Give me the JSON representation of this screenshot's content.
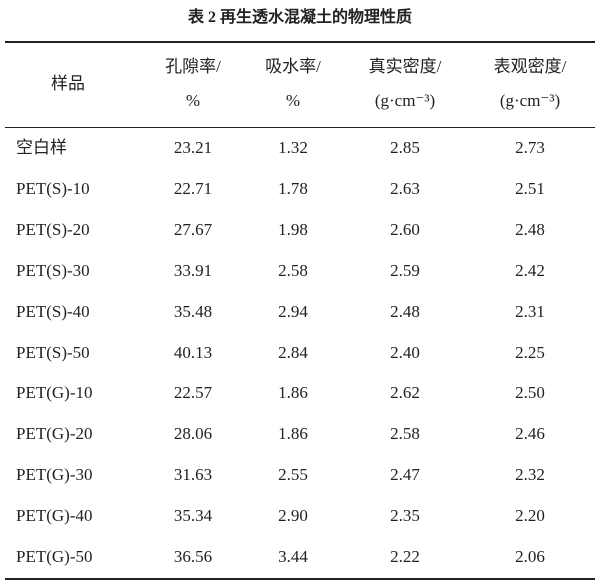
{
  "title": "表 2  再生透水混凝土的物理性质",
  "table": {
    "header": [
      [
        "样品"
      ],
      [
        "孔隙率/",
        "%"
      ],
      [
        "吸水率/",
        "%"
      ],
      [
        "真实密度/",
        "(g·cm⁻³)"
      ],
      [
        "表观密度/",
        "(g·cm⁻³)"
      ]
    ],
    "rows": [
      [
        "空白样",
        "23.21",
        "1.32",
        "2.85",
        "2.73"
      ],
      [
        "PET(S)-10",
        "22.71",
        "1.78",
        "2.63",
        "2.51"
      ],
      [
        "PET(S)-20",
        "27.67",
        "1.98",
        "2.60",
        "2.48"
      ],
      [
        "PET(S)-30",
        "33.91",
        "2.58",
        "2.59",
        "2.42"
      ],
      [
        "PET(S)-40",
        "35.48",
        "2.94",
        "2.48",
        "2.31"
      ],
      [
        "PET(S)-50",
        "40.13",
        "2.84",
        "2.40",
        "2.25"
      ],
      [
        "PET(G)-10",
        "22.57",
        "1.86",
        "2.62",
        "2.50"
      ],
      [
        "PET(G)-20",
        "28.06",
        "1.86",
        "2.58",
        "2.46"
      ],
      [
        "PET(G)-30",
        "31.63",
        "2.55",
        "2.47",
        "2.32"
      ],
      [
        "PET(G)-40",
        "35.34",
        "2.90",
        "2.35",
        "2.20"
      ],
      [
        "PET(G)-50",
        "36.56",
        "3.44",
        "2.22",
        "2.06"
      ]
    ]
  }
}
